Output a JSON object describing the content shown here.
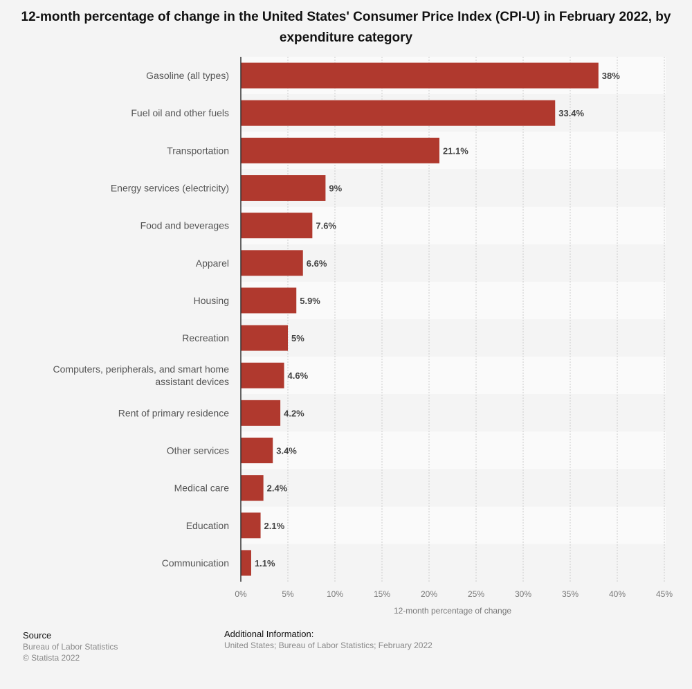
{
  "chart_data": {
    "type": "bar",
    "orientation": "horizontal",
    "title": "12-month percentage of change in the United States' Consumer Price Index (CPI-U) in February 2022, by expenditure category",
    "xlabel": "12-month percentage of change",
    "ylabel": "",
    "xlim": [
      0,
      45
    ],
    "xticks": [
      "0%",
      "5%",
      "10%",
      "15%",
      "20%",
      "25%",
      "30%",
      "35%",
      "40%",
      "45%"
    ],
    "tick_values": [
      0,
      5,
      10,
      15,
      20,
      25,
      30,
      35,
      40,
      45
    ],
    "grid": true,
    "categories": [
      "Gasoline (all types)",
      "Fuel oil and other fuels",
      "Transportation",
      "Energy services (electricity)",
      "Food and beverages",
      "Apparel",
      "Housing",
      "Recreation",
      "Computers, peripherals, and smart home assistant devices",
      "Rent of primary residence",
      "Other services",
      "Medical care",
      "Education",
      "Communication"
    ],
    "category_lines": [
      [
        "Gasoline (all types)"
      ],
      [
        "Fuel oil and other fuels"
      ],
      [
        "Transportation"
      ],
      [
        "Energy services (electricity)"
      ],
      [
        "Food and beverages"
      ],
      [
        "Apparel"
      ],
      [
        "Housing"
      ],
      [
        "Recreation"
      ],
      [
        "Computers, peripherals, and smart home",
        "assistant devices"
      ],
      [
        "Rent of primary residence"
      ],
      [
        "Other services"
      ],
      [
        "Medical care"
      ],
      [
        "Education"
      ],
      [
        "Communication"
      ]
    ],
    "values": [
      38,
      33.4,
      21.1,
      9,
      7.6,
      6.6,
      5.9,
      5,
      4.6,
      4.2,
      3.4,
      2.4,
      2.1,
      1.1
    ],
    "labels": [
      "38%",
      "33.4%",
      "21.1%",
      "9%",
      "7.6%",
      "6.6%",
      "5.9%",
      "5%",
      "4.6%",
      "4.2%",
      "3.4%",
      "2.4%",
      "2.1%",
      "1.1%"
    ],
    "bar_color": "#b0392e"
  },
  "footer": {
    "source_heading": "Source",
    "source": "Bureau of Labor Statistics",
    "copyright": "© Statista 2022",
    "additional_heading": "Additional Information:",
    "additional": "United States; Bureau of Labor Statistics; February 2022"
  }
}
